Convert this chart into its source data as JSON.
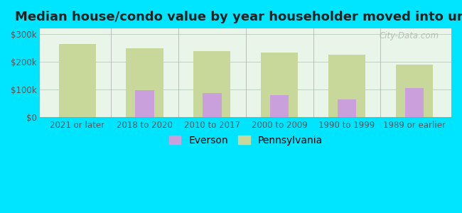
{
  "title": "Median house/condo value by year householder moved into unit",
  "categories": [
    "2021 or later",
    "2018 to 2020",
    "2010 to 2017",
    "2000 to 2009",
    "1990 to 1999",
    "1989 or earlier"
  ],
  "everson_values": [
    null,
    97000,
    87000,
    80000,
    63000,
    104000
  ],
  "pennsylvania_values": [
    263000,
    248000,
    238000,
    232000,
    225000,
    190000
  ],
  "everson_color": "#c9a0dc",
  "pennsylvania_color": "#c8d89a",
  "background_outer": "#00e5ff",
  "yticks": [
    0,
    100000,
    200000,
    300000
  ],
  "ylabels": [
    "$0",
    "$100k",
    "$200k",
    "$300k"
  ],
  "ylim": [
    0,
    320000
  ],
  "pa_bar_width": 0.55,
  "ev_bar_width": 0.28,
  "title_fontsize": 13,
  "tick_fontsize": 8.5,
  "legend_fontsize": 10,
  "watermark_text": "City-Data.com",
  "grid_color": "#bbccbb"
}
